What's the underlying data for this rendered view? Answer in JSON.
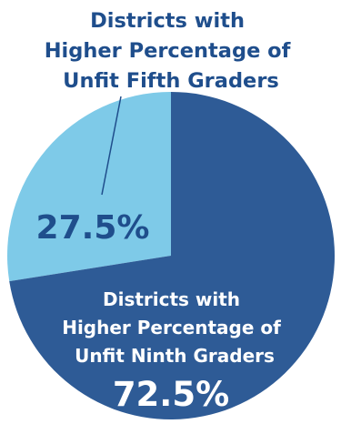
{
  "chart_data": {
    "type": "pie",
    "categories": [
      "Districts with Higher Percentage of Unfit Fifth Graders",
      "Districts with Higher Percentage of Unfit Ninth Graders"
    ],
    "values": [
      27.5,
      72.5
    ],
    "value_labels": [
      "27.5%",
      "72.5%"
    ],
    "title": "",
    "colors": [
      "#7ecae8",
      "#2e5b96"
    ],
    "label_color": "#1f4e8c",
    "inside_label_color": "#ffffff",
    "slices": [
      {
        "label_lines": [
          "Districts with",
          "Higher Percentage of",
          "Unfit Fifth Graders"
        ],
        "value_label": "27.5%",
        "label_position": "outside-top"
      },
      {
        "label_lines": [
          "Districts with",
          "Higher Percentage of",
          "Unfit Ninth Graders"
        ],
        "value_label": "72.5%",
        "label_position": "inside"
      }
    ]
  }
}
